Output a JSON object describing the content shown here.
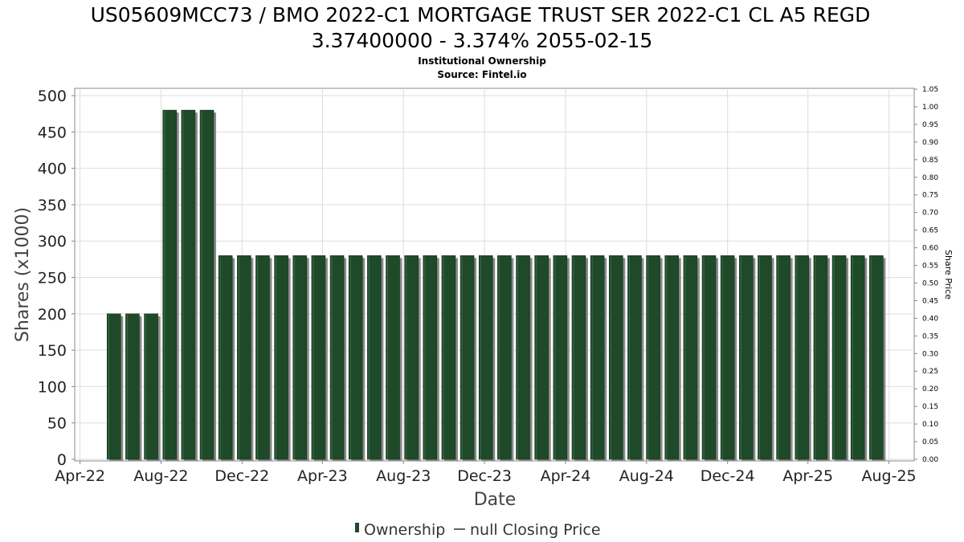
{
  "header": {
    "title_line1": "US05609MCC73 / BMO 2022-C1 MORTGAGE TRUST SER 2022-C1 CL A5 REGD",
    "title_line2": "3.37400000 - 3.374% 2055-02-15",
    "subtitle1": "Institutional Ownership",
    "subtitle2": "Source: Fintel.io"
  },
  "legend": {
    "ownership": "Ownership",
    "price": "null Closing Price"
  },
  "colors": {
    "bar": "#1e4a2a",
    "bar_shadow": "#8a8a8a",
    "grid": "#dddddd",
    "plot_border": "#888888"
  },
  "chart_data": {
    "type": "bar",
    "title": "US05609MCC73 / BMO 2022-C1 MORTGAGE TRUST SER 2022-C1 CL A5 REGD 3.37400000 - 3.374% 2055-02-15",
    "subtitle": "Institutional Ownership / Source: Fintel.io",
    "xlabel": "Date",
    "ylabel": "Shares (x1000)",
    "y2label": "Share Price",
    "ylim": [
      0,
      510
    ],
    "y2lim": [
      0,
      1.05
    ],
    "yticks": [
      "0",
      "50",
      "100",
      "150",
      "200",
      "250",
      "300",
      "350",
      "400",
      "450",
      "500"
    ],
    "y2ticks": [
      "0.00",
      "0.05",
      "0.10",
      "0.15",
      "0.20",
      "0.25",
      "0.30",
      "0.35",
      "0.40",
      "0.45",
      "0.50",
      "0.55",
      "0.60",
      "0.65",
      "0.70",
      "0.75",
      "0.80",
      "0.85",
      "0.90",
      "0.95",
      "1.00",
      "1.05"
    ],
    "xlim": [
      "2022-03-24",
      "2025-09-08"
    ],
    "xticks": [
      {
        "date": "2022-04-01",
        "label": "Apr-22"
      },
      {
        "date": "2022-08-01",
        "label": "Aug-22"
      },
      {
        "date": "2022-12-01",
        "label": "Dec-22"
      },
      {
        "date": "2023-04-01",
        "label": "Apr-23"
      },
      {
        "date": "2023-08-01",
        "label": "Aug-23"
      },
      {
        "date": "2023-12-01",
        "label": "Dec-23"
      },
      {
        "date": "2024-04-01",
        "label": "Apr-24"
      },
      {
        "date": "2024-08-01",
        "label": "Aug-24"
      },
      {
        "date": "2024-12-01",
        "label": "Dec-24"
      },
      {
        "date": "2025-04-01",
        "label": "Apr-25"
      },
      {
        "date": "2025-08-01",
        "label": "Aug-25"
      }
    ],
    "grid": true,
    "legend_position": "bottom",
    "series": [
      {
        "name": "Ownership",
        "x": [
          "2022-05-22",
          "2022-06-19",
          "2022-07-17",
          "2022-08-14",
          "2022-09-11",
          "2022-10-09",
          "2022-11-06",
          "2022-12-04",
          "2023-01-01",
          "2023-01-29",
          "2023-02-26",
          "2023-03-26",
          "2023-04-23",
          "2023-05-21",
          "2023-06-18",
          "2023-07-16",
          "2023-08-13",
          "2023-09-10",
          "2023-10-08",
          "2023-11-05",
          "2023-12-03",
          "2023-12-31",
          "2024-01-28",
          "2024-02-25",
          "2024-03-24",
          "2024-04-21",
          "2024-05-19",
          "2024-06-16",
          "2024-07-14",
          "2024-08-11",
          "2024-09-08",
          "2024-10-06",
          "2024-11-03",
          "2024-12-01",
          "2024-12-29",
          "2025-01-26",
          "2025-02-23",
          "2025-03-23",
          "2025-04-20",
          "2025-05-18",
          "2025-06-15",
          "2025-07-13"
        ],
        "values": [
          200,
          200,
          200,
          480,
          480,
          480,
          280,
          280,
          280,
          280,
          280,
          280,
          280,
          280,
          280,
          280,
          280,
          280,
          280,
          280,
          280,
          280,
          280,
          280,
          280,
          280,
          280,
          280,
          280,
          280,
          280,
          280,
          280,
          280,
          280,
          280,
          280,
          280,
          280,
          280,
          280,
          280
        ]
      }
    ]
  }
}
